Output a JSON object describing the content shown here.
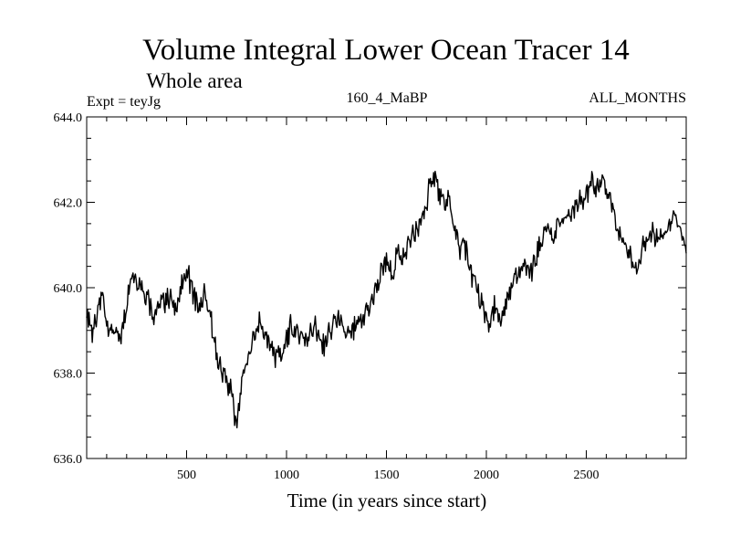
{
  "chart_data": {
    "type": "line",
    "title": "Volume Integral Lower Ocean Tracer 14",
    "subtitle": "Whole area",
    "experiment_label": "Expt = teyJg",
    "run_label": "160_4_MaBP",
    "months_label": "ALL_MONTHS",
    "xlabel": "Time (in years since start)",
    "ylabel": "",
    "xlim": [
      0,
      3000
    ],
    "ylim": [
      636.0,
      644.0
    ],
    "x_ticks": [
      500,
      1000,
      1500,
      2000,
      2500
    ],
    "x_tick_labels": [
      "500",
      "1000",
      "1500",
      "2000",
      "2500"
    ],
    "y_ticks": [
      636.0,
      638.0,
      640.0,
      642.0,
      644.0
    ],
    "y_tick_labels": [
      "636.0",
      "638.0",
      "640.0",
      "642.0",
      "644.0"
    ],
    "series": [
      {
        "name": "Lower Ocean Tracer 14",
        "color": "#000000",
        "x": [
          0,
          30,
          50,
          80,
          100,
          140,
          170,
          200,
          230,
          260,
          290,
          330,
          370,
          410,
          450,
          470,
          500,
          540,
          570,
          590,
          620,
          660,
          690,
          720,
          750,
          780,
          810,
          840,
          870,
          900,
          940,
          980,
          1020,
          1060,
          1100,
          1140,
          1180,
          1220,
          1260,
          1300,
          1340,
          1380,
          1420,
          1460,
          1500,
          1530,
          1560,
          1590,
          1620,
          1650,
          1680,
          1710,
          1730,
          1760,
          1790,
          1810,
          1840,
          1870,
          1900,
          1930,
          1960,
          1990,
          2010,
          2040,
          2070,
          2100,
          2130,
          2160,
          2190,
          2220,
          2250,
          2280,
          2310,
          2340,
          2370,
          2400,
          2430,
          2460,
          2490,
          2520,
          2550,
          2580,
          2610,
          2640,
          2670,
          2700,
          2730,
          2760,
          2790,
          2820,
          2850,
          2880,
          2910,
          2940,
          2970,
          3000
        ],
        "values": [
          639.5,
          639.0,
          639.3,
          639.9,
          639.2,
          638.9,
          638.8,
          639.6,
          640.4,
          640.1,
          640.0,
          639.4,
          639.6,
          639.8,
          639.5,
          639.9,
          640.5,
          639.7,
          639.5,
          639.9,
          639.2,
          638.2,
          637.9,
          637.6,
          636.8,
          637.9,
          638.4,
          638.9,
          639.1,
          638.9,
          638.4,
          638.5,
          639.1,
          638.9,
          638.8,
          639.1,
          638.7,
          639.0,
          639.3,
          638.9,
          639.0,
          639.3,
          639.6,
          640.2,
          640.6,
          640.3,
          640.9,
          640.7,
          641.1,
          641.3,
          641.6,
          642.1,
          642.7,
          642.3,
          641.8,
          642.1,
          641.3,
          640.9,
          640.8,
          640.3,
          639.8,
          639.4,
          639.2,
          639.5,
          639.3,
          639.6,
          640.1,
          640.4,
          640.6,
          640.3,
          640.7,
          641.2,
          641.4,
          641.3,
          641.5,
          641.7,
          641.8,
          642.0,
          642.2,
          642.4,
          642.3,
          642.5,
          642.1,
          641.6,
          641.2,
          640.9,
          640.6,
          640.5,
          641.0,
          641.1,
          641.3,
          641.2,
          641.4,
          641.8,
          641.3,
          641.0
        ]
      }
    ]
  }
}
